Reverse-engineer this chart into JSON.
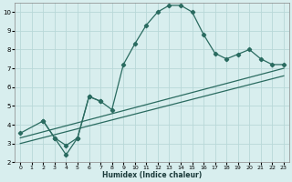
{
  "xlabel": "Humidex (Indice chaleur)",
  "bg_color": "#d8eeee",
  "grid_color": "#b8d8d8",
  "line_color": "#2a6b60",
  "xlim": [
    -0.5,
    23.5
  ],
  "ylim": [
    2,
    10.5
  ],
  "xticks": [
    0,
    1,
    2,
    3,
    4,
    5,
    6,
    7,
    8,
    9,
    10,
    11,
    12,
    13,
    14,
    15,
    16,
    17,
    18,
    19,
    20,
    21,
    22,
    23
  ],
  "yticks": [
    2,
    3,
    4,
    5,
    6,
    7,
    8,
    9,
    10
  ],
  "curve1_x": [
    2,
    3,
    4,
    5,
    6,
    7,
    8,
    9,
    10,
    11,
    12,
    13,
    14,
    15,
    16,
    17,
    18,
    19,
    20,
    21,
    22,
    23
  ],
  "curve1_y": [
    4.2,
    3.3,
    2.9,
    3.3,
    5.5,
    5.25,
    4.8,
    7.2,
    8.3,
    9.3,
    10.0,
    10.35,
    10.35,
    10.0,
    8.8,
    7.8,
    7.5,
    7.75,
    8.0,
    7.5,
    7.2,
    7.2
  ],
  "curve2_x": [
    0,
    2,
    3,
    4,
    5,
    6,
    7
  ],
  "curve2_y": [
    3.55,
    4.2,
    3.3,
    2.4,
    3.3,
    5.5,
    5.25
  ],
  "line3_x": [
    0,
    23
  ],
  "line3_y": [
    3.3,
    7.0
  ],
  "line4_x": [
    0,
    23
  ],
  "line4_y": [
    3.0,
    6.6
  ]
}
